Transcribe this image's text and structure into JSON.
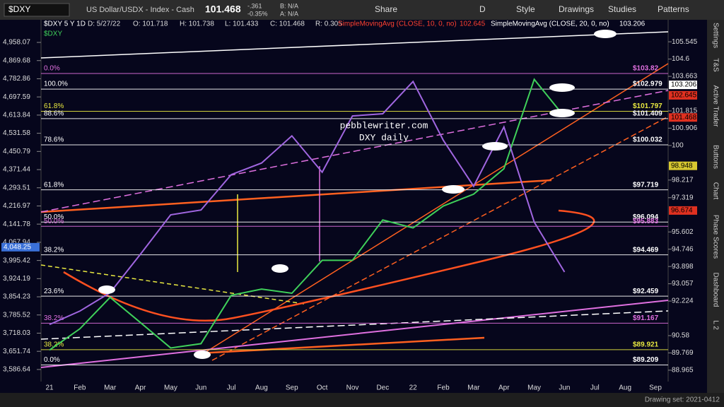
{
  "toolbar": {
    "symbol": "$DXY",
    "description": "US Dollar/USDX - Index - Cash",
    "last": "101.468",
    "change": "-.361",
    "change_pct": "-0.35%",
    "bid": "B: N/A",
    "ask": "A: N/A",
    "buttons": [
      "Share",
      "D",
      "Style",
      "Drawings",
      "Studies",
      "Patterns"
    ]
  },
  "header": {
    "symbol": "$DXY 5 Y 1D",
    "date": "D: 5/27/22",
    "open": "O: 101.718",
    "high": "H: 101.738",
    "low": "L: 101.433",
    "close": "C: 101.468",
    "range": "R: 0.305",
    "study1": "SimpleMovingAvg (CLOSE, 10, 0, no)",
    "study1_value": "102.645",
    "study2": "SimpleMovingAvg (CLOSE, 20, 0, no)",
    "study2_value": "103.206"
  },
  "side_tabs": [
    "Settings",
    "T&S",
    "Active Trader",
    "Buttons",
    "Chart",
    "Phase Scores",
    "Dashboard",
    "L 2"
  ],
  "status": "Drawing set: 2021-0412",
  "chart_data": {
    "type": "line",
    "annotations": [
      "pebblewriter.com",
      "DXY daily"
    ],
    "categories": [
      "21",
      "Feb",
      "Mar",
      "Apr",
      "May",
      "Jun",
      "Jul",
      "Aug",
      "Sep",
      "Oct",
      "Nov",
      "Dec",
      "22",
      "Feb",
      "Mar",
      "Apr",
      "May",
      "Jun",
      "Jul",
      "Aug",
      "Sep"
    ],
    "series": [
      {
        "name": "$DXY",
        "color": "#3fd05a",
        "axis": "y2",
        "values": [
          89.9,
          90.9,
          92.4,
          91.2,
          90.0,
          90.2,
          92.5,
          92.8,
          92.6,
          94.2,
          94.2,
          96.2,
          95.8,
          96.9,
          97.5,
          98.8,
          103.5,
          101.5,
          null,
          null,
          null
        ]
      },
      {
        "color": "#a066e0",
        "values": [
          3750,
          3800,
          3870,
          4020,
          4180,
          4200,
          4350,
          4400,
          4520,
          4360,
          4610,
          4620,
          4770,
          4500,
          4300,
          4560,
          4150,
          3950,
          null,
          null,
          null
        ]
      }
    ],
    "log_scale": true,
    "ylim": [
      3544,
      5028
    ],
    "yticks": [
      {
        "value": 4958.07,
        "label": "4,958.07"
      },
      {
        "value": 4869.68,
        "label": "4,869.68"
      },
      {
        "value": 4782.86,
        "label": "4,782.86"
      },
      {
        "value": 4697.59,
        "label": "4,697.59"
      },
      {
        "value": 4613.84,
        "label": "4,613.84"
      },
      {
        "value": 4531.58,
        "label": "4,531.58"
      },
      {
        "value": 4450.79,
        "label": "4,450.79"
      },
      {
        "value": 4371.44,
        "label": "4,371.44"
      },
      {
        "value": 4293.51,
        "label": "4,293.51"
      },
      {
        "value": 4216.97,
        "label": "4,216.97"
      },
      {
        "value": 4141.78,
        "label": "4,141.78"
      },
      {
        "value": 4067.94,
        "label": "4,067.94"
      },
      {
        "value": 3995.42,
        "label": "3,995.42"
      },
      {
        "value": 3924.19,
        "label": "3,924.19"
      },
      {
        "value": 3854.23,
        "label": "3,854.23"
      },
      {
        "value": 3785.52,
        "label": "3,785.52"
      },
      {
        "value": 3718.03,
        "label": "3,718.03"
      },
      {
        "value": 3651.74,
        "label": "3,651.74"
      },
      {
        "value": 3586.64,
        "label": "3,586.64"
      }
    ],
    "y2lim": [
      88.44,
      106.29
    ],
    "y2ticks": [
      105.545,
      104.6,
      103.663,
      101.815,
      100.906,
      100,
      98.217,
      97.319,
      95.602,
      94.746,
      93.898,
      93.057,
      92.224,
      90.58,
      89.769,
      88.965
    ],
    "levels": [
      {
        "name": "0.0%",
        "value": 103.82,
        "value_label": "$103.82",
        "color": "#e070e0"
      },
      {
        "name": "100.0%",
        "value": 102.979,
        "value_label": "$102.979",
        "color": "#ffffff"
      },
      {
        "name": "61.8%",
        "value": 101.797,
        "value_label": "$101.797",
        "color": "#e8e840"
      },
      {
        "name": "88.6%",
        "value": 101.409,
        "value_label": "$101.409",
        "color": "#ffffff"
      },
      {
        "name": "78.6%",
        "value": 100.032,
        "value_label": "$100.032",
        "color": "#ffffff"
      },
      {
        "name": "61.8%",
        "value": 97.719,
        "value_label": "$97.719",
        "color": "#ffffff"
      },
      {
        "name": "50.0%",
        "value": 96.094,
        "value_label": "$96.094",
        "color": "#ffffff"
      },
      {
        "name": "50.0%",
        "value": 95.883,
        "value_label": "$95.883",
        "color": "#e070e0"
      },
      {
        "name": "38.2%",
        "value": 94.469,
        "value_label": "$94.469",
        "color": "#ffffff"
      },
      {
        "name": "23.6%",
        "value": 92.459,
        "value_label": "$92.459",
        "color": "#ffffff"
      },
      {
        "name": "38.2%",
        "value": 91.167,
        "value_label": "$91.167",
        "color": "#e070e0"
      },
      {
        "name": "38.2%",
        "value": 89.921,
        "value_label": "$89.921",
        "color": "#e8e840"
      },
      {
        "name": "0.0%",
        "value": 89.209,
        "value_label": "$89.209",
        "color": "#ffffff"
      }
    ],
    "right_badges": [
      {
        "value": 103.206,
        "color": "#ffffff"
      },
      {
        "value": 102.645,
        "color": "#e03020"
      },
      {
        "value": 101.468,
        "color": "#e03020"
      },
      {
        "value": 98.948,
        "color": "#d8c830"
      },
      {
        "value": 96.674,
        "color": "#e03020"
      }
    ],
    "left_badges": [
      {
        "value": 4048.25,
        "label": "4,048.25",
        "color": "#3a70d8"
      }
    ]
  }
}
